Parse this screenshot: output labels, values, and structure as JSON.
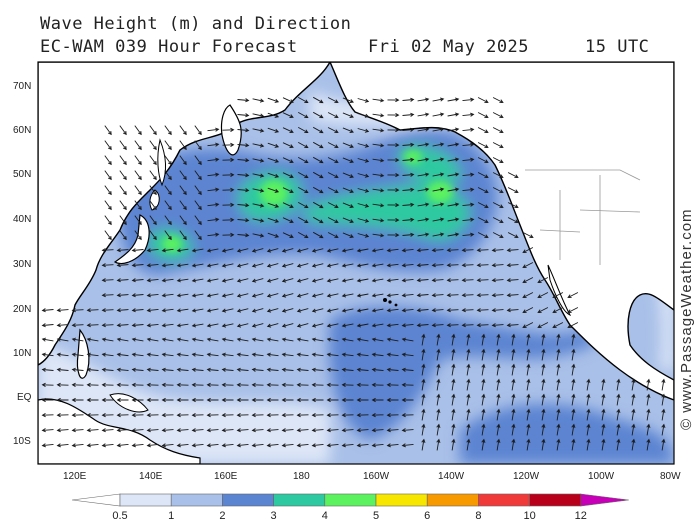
{
  "header": {
    "title": "Wave Height (m) and Direction",
    "model_run": "EC-WAM 039 Hour Forecast",
    "date": "Fri 02 May 2025",
    "time": "15 UTC"
  },
  "credit": "© www.PassageWeather.com",
  "map": {
    "lat_labels": [
      "70N",
      "60N",
      "50N",
      "40N",
      "30N",
      "20N",
      "10N",
      "EQ",
      "10S"
    ],
    "lon_labels": [
      "120E",
      "140E",
      "160E",
      "180",
      "160W",
      "140W",
      "120W",
      "100W",
      "80W"
    ],
    "colors": {
      "land": "#ffffff",
      "coast": "#000000",
      "border": "#9a9a9a",
      "arrow": "#1a1a1a"
    }
  },
  "legend": {
    "labels": [
      "0.5",
      "1",
      "2",
      "3",
      "4",
      "5",
      "6",
      "8",
      "10",
      "12"
    ],
    "colors": [
      "#ffffff",
      "#dde6f7",
      "#a9c0e8",
      "#5b84d1",
      "#2ec9a0",
      "#5cf25f",
      "#f7e600",
      "#f79a00",
      "#f03a3a",
      "#b8001a",
      "#c700b8"
    ]
  }
}
